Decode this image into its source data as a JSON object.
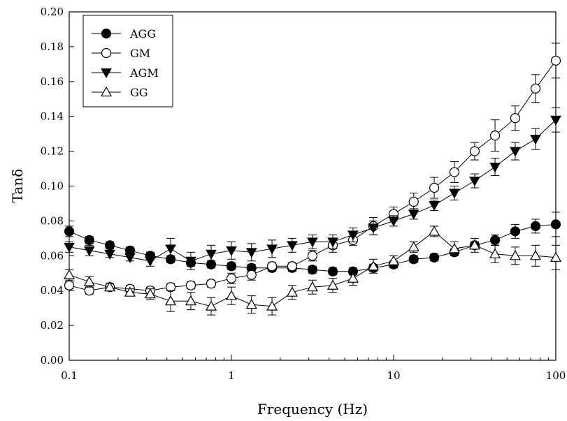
{
  "chart_data": {
    "type": "scatter",
    "title": "",
    "xlabel": "Frequency (Hz)",
    "ylabel": "Tanδ",
    "xscale": "log",
    "xlim": [
      0.1,
      100
    ],
    "ylim": [
      0.0,
      0.2
    ],
    "x_ticks": [
      0.1,
      1,
      10,
      100
    ],
    "x_tick_labels": [
      "0.1",
      "1",
      "10",
      "100"
    ],
    "y_ticks": [
      0.0,
      0.02,
      0.04,
      0.06,
      0.08,
      0.1,
      0.12,
      0.14,
      0.16,
      0.18,
      0.2
    ],
    "y_tick_labels": [
      "0.00",
      "0.02",
      "0.04",
      "0.06",
      "0.08",
      "0.10",
      "0.12",
      "0.14",
      "0.16",
      "0.18",
      "0.20"
    ],
    "grid": false,
    "legend_position": "top-left",
    "x": [
      0.1,
      0.133,
      0.178,
      0.237,
      0.316,
      0.422,
      0.562,
      0.75,
      1.0,
      1.33,
      1.78,
      2.37,
      3.16,
      4.22,
      5.62,
      7.5,
      10.0,
      13.3,
      17.8,
      23.7,
      31.6,
      42.2,
      56.2,
      75.0,
      100.0
    ],
    "series": [
      {
        "name": "AGG",
        "marker": "filled-circle",
        "y": [
          0.074,
          0.069,
          0.066,
          0.063,
          0.06,
          0.058,
          0.056,
          0.055,
          0.054,
          0.053,
          0.053,
          0.053,
          0.052,
          0.051,
          0.051,
          0.053,
          0.055,
          0.058,
          0.059,
          0.062,
          0.066,
          0.069,
          0.074,
          0.077,
          0.078
        ],
        "err": [
          0.003,
          0.002,
          0.002,
          0.002,
          0.002,
          0.002,
          0.002,
          0.002,
          0.002,
          0.002,
          0.002,
          0.002,
          0.002,
          0.002,
          0.002,
          0.002,
          0.002,
          0.002,
          0.002,
          0.002,
          0.002,
          0.003,
          0.004,
          0.004,
          0.007
        ]
      },
      {
        "name": "GM",
        "marker": "open-circle",
        "y": [
          0.043,
          0.04,
          0.042,
          0.041,
          0.04,
          0.042,
          0.043,
          0.044,
          0.047,
          0.049,
          0.054,
          0.054,
          0.06,
          0.066,
          0.069,
          0.077,
          0.084,
          0.091,
          0.099,
          0.108,
          0.12,
          0.129,
          0.139,
          0.156,
          0.172
        ],
        "err": [
          0.002,
          0.002,
          0.002,
          0.002,
          0.002,
          0.002,
          0.002,
          0.002,
          0.003,
          0.003,
          0.002,
          0.002,
          0.003,
          0.004,
          0.003,
          0.005,
          0.004,
          0.005,
          0.006,
          0.006,
          0.005,
          0.009,
          0.007,
          0.008,
          0.01
        ]
      },
      {
        "name": "AGM",
        "marker": "filled-triangle-down",
        "y": [
          0.065,
          0.063,
          0.061,
          0.059,
          0.057,
          0.064,
          0.057,
          0.061,
          0.063,
          0.062,
          0.064,
          0.066,
          0.068,
          0.068,
          0.072,
          0.076,
          0.08,
          0.084,
          0.089,
          0.096,
          0.103,
          0.111,
          0.12,
          0.127,
          0.138
        ]
      },
      {
        "name": "GG",
        "marker": "open-triangle-up",
        "y": [
          0.049,
          0.045,
          0.042,
          0.039,
          0.038,
          0.034,
          0.034,
          0.031,
          0.037,
          0.032,
          0.031,
          0.039,
          0.042,
          0.043,
          0.047,
          0.054,
          0.057,
          0.065,
          0.074,
          0.064,
          0.066,
          0.061,
          0.06,
          0.06,
          0.059
        ]
      }
    ]
  }
}
